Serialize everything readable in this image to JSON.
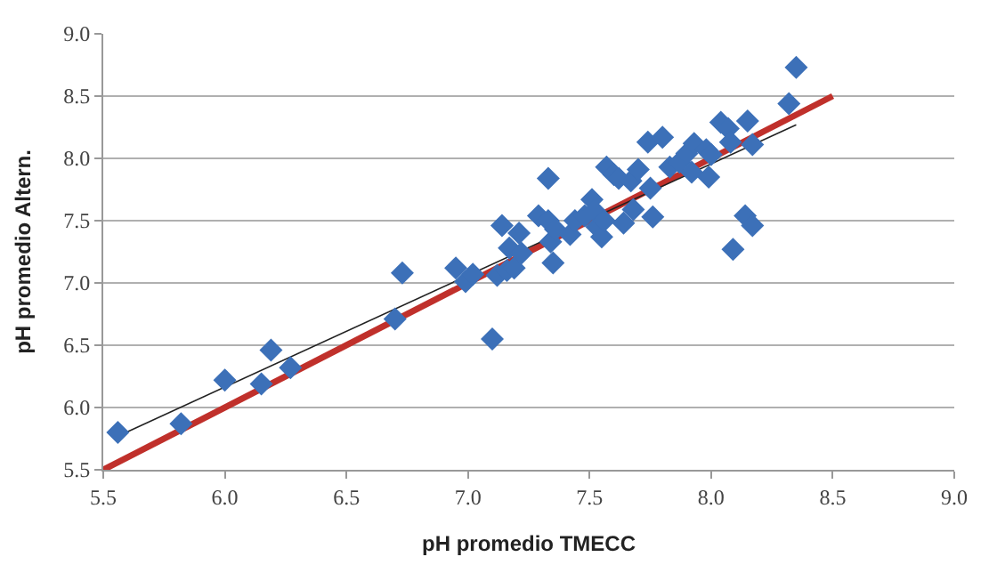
{
  "chart_data": {
    "type": "scatter",
    "xlabel": "pH promedio TMECC",
    "ylabel": "pH promedio Altern.",
    "xlim": [
      5.5,
      9.0
    ],
    "xticks": [
      {
        "value": 5.5,
        "label": "5.5"
      },
      {
        "value": 6.0,
        "label": "6.0"
      },
      {
        "value": 6.5,
        "label": "6.5"
      },
      {
        "value": 7.0,
        "label": "7.0"
      },
      {
        "value": 7.5,
        "label": "7.5"
      },
      {
        "value": 8.0,
        "label": "8.0"
      },
      {
        "value": 8.5,
        "label": "8.5"
      },
      {
        "value": 9.0,
        "label": "9.0"
      }
    ],
    "ylim": [
      5.5,
      9.0
    ],
    "yticks": [
      {
        "value": 5.5,
        "label": "5.5"
      },
      {
        "value": 6.0,
        "label": "6.0"
      },
      {
        "value": 6.5,
        "label": "6.5"
      },
      {
        "value": 7.0,
        "label": "7.0"
      },
      {
        "value": 7.5,
        "label": "7.5"
      },
      {
        "value": 8.0,
        "label": "8.0"
      },
      {
        "value": 8.5,
        "label": "8.5"
      },
      {
        "value": 9.0,
        "label": "9.0"
      }
    ],
    "grid": "y",
    "series": [
      {
        "type": "line",
        "color": "#c0302b",
        "x": [
          5.5,
          8.5
        ],
        "values": [
          5.5,
          8.5
        ]
      },
      {
        "type": "line",
        "color": "#222222",
        "x": [
          5.56,
          8.35
        ],
        "values": [
          5.77,
          8.27
        ]
      },
      {
        "color": "#3c70b8",
        "marker": "diamond",
        "x": [
          5.56,
          5.82,
          6.0,
          6.15,
          6.19,
          6.27,
          6.7,
          6.73,
          6.95,
          6.99,
          7.02,
          7.1,
          7.12,
          7.14,
          7.16,
          7.17,
          7.19,
          7.21,
          7.22,
          7.29,
          7.33,
          7.33,
          7.34,
          7.35,
          7.36,
          7.42,
          7.44,
          7.48,
          7.51,
          7.52,
          7.53,
          7.55,
          7.56,
          7.57,
          7.6,
          7.62,
          7.64,
          7.67,
          7.68,
          7.7,
          7.74,
          7.75,
          7.76,
          7.8,
          7.83,
          7.87,
          7.9,
          7.92,
          7.93,
          7.98,
          7.99,
          8.0,
          8.04,
          8.07,
          8.08,
          8.09,
          8.14,
          8.15,
          8.17,
          8.17,
          8.32,
          8.35
        ],
        "values": [
          5.8,
          5.87,
          6.22,
          6.19,
          6.46,
          6.32,
          6.71,
          7.08,
          7.12,
          7.01,
          7.07,
          6.55,
          7.06,
          7.46,
          7.1,
          7.28,
          7.12,
          7.4,
          7.24,
          7.54,
          7.84,
          7.5,
          7.33,
          7.16,
          7.43,
          7.39,
          7.5,
          7.54,
          7.67,
          7.58,
          7.45,
          7.37,
          7.5,
          7.93,
          7.87,
          7.84,
          7.48,
          7.82,
          7.59,
          7.91,
          8.13,
          7.76,
          7.53,
          8.17,
          7.93,
          7.97,
          8.04,
          7.89,
          8.12,
          8.07,
          7.85,
          8.03,
          8.29,
          8.24,
          8.13,
          7.27,
          7.54,
          8.3,
          7.46,
          8.11,
          8.44,
          8.73
        ]
      }
    ]
  }
}
